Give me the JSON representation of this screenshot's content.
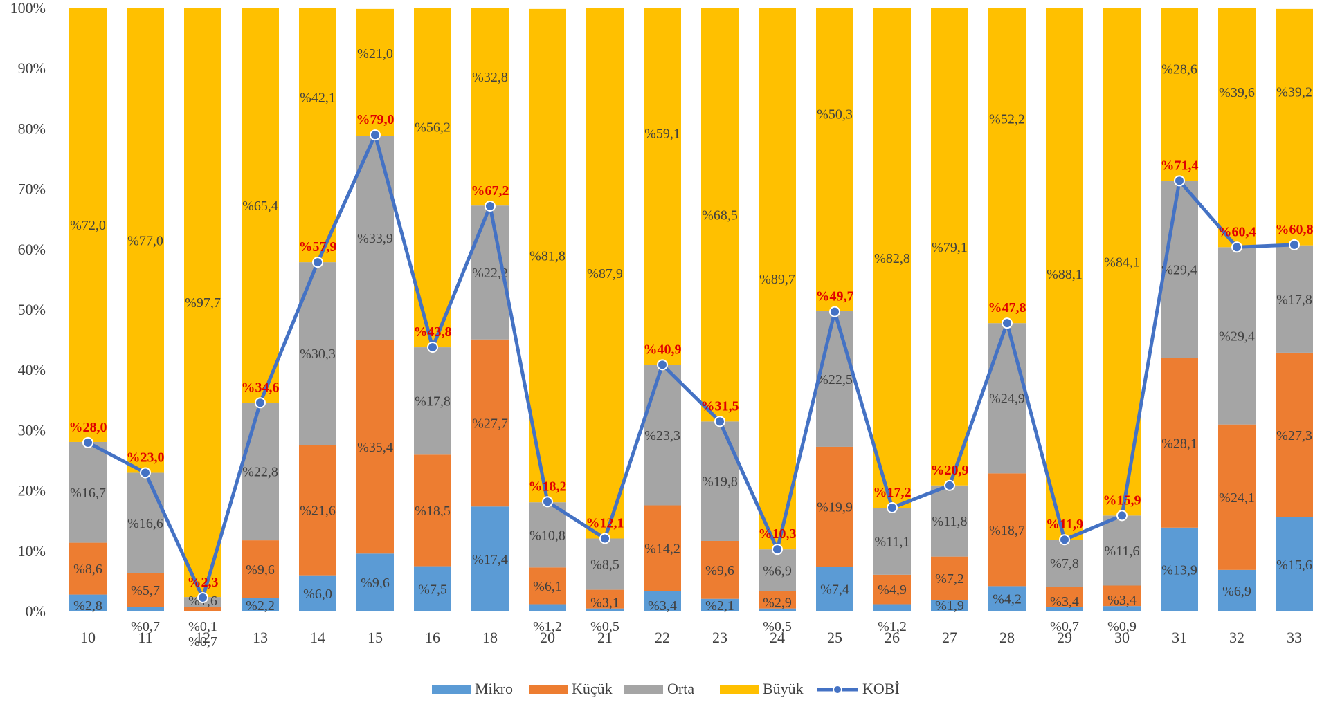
{
  "chart_data": {
    "type": "bar",
    "stacked": true,
    "categories": [
      "10",
      "11",
      "12",
      "13",
      "14",
      "15",
      "16",
      "18",
      "20",
      "21",
      "22",
      "23",
      "24",
      "25",
      "26",
      "27",
      "28",
      "29",
      "30",
      "31",
      "32",
      "33"
    ],
    "series": [
      {
        "name": "Mikro",
        "color": "#5b9bd5",
        "values": [
          2.8,
          0.7,
          0.1,
          2.2,
          6.0,
          9.6,
          7.5,
          17.4,
          1.2,
          0.5,
          3.4,
          2.1,
          0.5,
          7.4,
          1.2,
          1.9,
          4.2,
          0.7,
          0.9,
          13.9,
          6.9,
          15.6
        ],
        "labels": [
          "%2,8",
          "%0,7",
          "%0,1",
          "%2,2",
          "%6,0",
          "%9,6",
          "%7,5",
          "%17,4",
          "%1,2",
          "%0,5",
          "%3,4",
          "%2,1",
          "%0,5",
          "%7,4",
          "%1,2",
          "%1,9",
          "%4,2",
          "%0,7",
          "%0,9",
          "%13,9",
          "%6,9",
          "%15,6"
        ]
      },
      {
        "name": "Küçük",
        "color": "#ed7d31",
        "values": [
          8.6,
          5.7,
          0.7,
          9.6,
          21.6,
          35.4,
          18.5,
          27.7,
          6.1,
          3.1,
          14.2,
          9.6,
          2.9,
          19.9,
          4.9,
          7.2,
          18.7,
          3.4,
          3.4,
          28.1,
          24.1,
          27.3
        ],
        "labels": [
          "%8,6",
          "%5,7",
          "%0,7",
          "%9,6",
          "%21,6",
          "%35,4",
          "%18,5",
          "%27,7",
          "%6,1",
          "%3,1",
          "%14,2",
          "%9,6",
          "%2,9",
          "%19,9",
          "%4,9",
          "%7,2",
          "%18,7",
          "%3,4",
          "%3,4",
          "%28,1",
          "%24,1",
          "%27,3"
        ]
      },
      {
        "name": "Orta",
        "color": "#a5a5a5",
        "values": [
          16.7,
          16.6,
          1.6,
          22.8,
          30.3,
          33.9,
          17.8,
          22.2,
          10.8,
          8.5,
          23.3,
          19.8,
          6.9,
          22.5,
          11.1,
          11.8,
          24.9,
          7.8,
          11.6,
          29.4,
          29.4,
          17.8
        ],
        "labels": [
          "%16,7",
          "%16,6",
          "%1,6",
          "%22,8",
          "%30,3",
          "%33,9",
          "%17,8",
          "%22,2",
          "%10,8",
          "%8,5",
          "%23,3",
          "%19,8",
          "%6,9",
          "%22,5",
          "%11,1",
          "%11,8",
          "%24,9",
          "%7,8",
          "%11,6",
          "%29,4",
          "%29,4",
          "%17,8"
        ]
      },
      {
        "name": "Büyük",
        "color": "#ffc000",
        "values": [
          72.0,
          77.0,
          97.7,
          65.4,
          42.1,
          21.0,
          56.2,
          32.8,
          81.8,
          87.9,
          59.1,
          68.5,
          89.7,
          50.3,
          82.8,
          79.1,
          52.2,
          88.1,
          84.1,
          28.6,
          39.6,
          39.2
        ],
        "labels": [
          "%72,0",
          "%77,0",
          "%97,7",
          "%65,4",
          "%42,1",
          "%21,0",
          "%56,2",
          "%32,8",
          "%81,8",
          "%87,9",
          "%59,1",
          "%68,5",
          "%89,7",
          "%50,3",
          "%82,8",
          "%79,1",
          "%52,2",
          "%88,1",
          "%84,1",
          "%28,6",
          "%39,6",
          "%39,2"
        ]
      }
    ],
    "line": {
      "name": "KOBİ",
      "color": "#4472c4",
      "values": [
        28.0,
        23.0,
        2.3,
        34.6,
        57.9,
        79.0,
        43.8,
        67.2,
        18.2,
        12.1,
        40.9,
        31.5,
        10.3,
        49.7,
        17.2,
        20.9,
        47.8,
        11.9,
        15.9,
        71.4,
        60.4,
        60.8
      ],
      "labels": [
        "%28,0",
        "%23,0",
        "%2,3",
        "%34,6",
        "%57,9",
        "%79,0",
        "%43,8",
        "%67,2",
        "%18,2",
        "%12,1",
        "%40,9",
        "%31,5",
        "%10,3",
        "%49,7",
        "%17,2",
        "%20,9",
        "%47,8",
        "%11,9",
        "%15,9",
        "%71,4",
        "%60,4",
        "%60,8"
      ]
    },
    "y_ticks": [
      "0%",
      "10%",
      "20%",
      "30%",
      "40%",
      "50%",
      "60%",
      "70%",
      "80%",
      "90%",
      "100%"
    ],
    "ylim": [
      0,
      100
    ],
    "grid": false,
    "legend_position": "bottom",
    "title": "",
    "xlabel": "",
    "ylabel": ""
  }
}
